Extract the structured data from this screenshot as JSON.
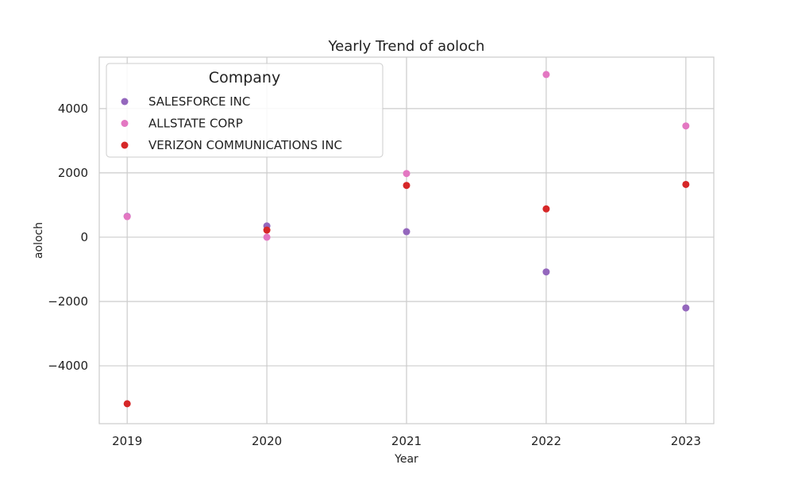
{
  "chart_data": {
    "type": "scatter",
    "title": "Yearly Trend of aoloch",
    "xlabel": "Year",
    "ylabel": "aoloch",
    "x": [
      2019,
      2020,
      2021,
      2022,
      2023
    ],
    "xlim": [
      2018.8,
      2023.2
    ],
    "ylim": [
      -5800,
      5600
    ],
    "yticks": [
      -4000,
      -2000,
      0,
      2000,
      4000
    ],
    "grid": true,
    "legend": {
      "title": "Company",
      "placement": "top-left"
    },
    "series": [
      {
        "name": "SALESFORCE INC",
        "color": "#9467bd",
        "values": [
          650,
          350,
          170,
          -1080,
          -2200
        ]
      },
      {
        "name": "ALLSTATE CORP",
        "color": "#e377c2",
        "values": [
          640,
          0,
          1980,
          5060,
          3460
        ]
      },
      {
        "name": "VERIZON COMMUNICATIONS INC",
        "color": "#d62728",
        "values": [
          -5180,
          220,
          1610,
          880,
          1640
        ]
      }
    ]
  }
}
